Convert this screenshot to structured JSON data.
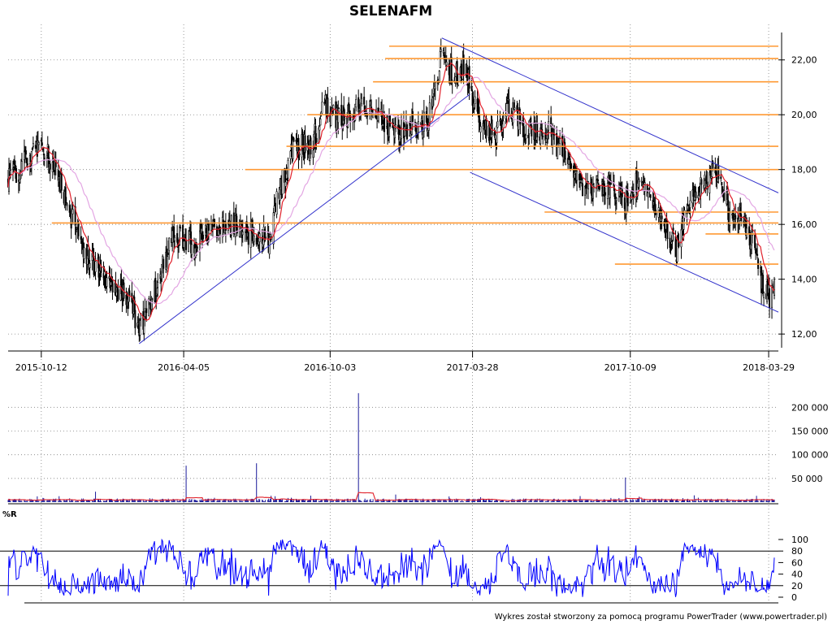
{
  "footer": "Wykres został stworzony za pomocą programu PowerTrader (www.powertrader.pl)",
  "colors": {
    "candle": "#000000",
    "ma_fast": "#e0202a",
    "ma_slow": "#e3a6e3",
    "trend": "#3333cc",
    "level": "#ff9933",
    "volume": "#1a1a99",
    "volume_ma": "#e0202a",
    "williams": "#0000ff",
    "grid": "#808080"
  },
  "chart_data": [
    {
      "type": "candlestick",
      "title": "SELENAFM",
      "x_tick_labels": [
        "2015-10-12",
        "2016-04-05",
        "2016-10-03",
        "2017-03-28",
        "2017-10-09",
        "2018-03-29"
      ],
      "x_range": [
        "2015-09-01",
        "2018-04-10"
      ],
      "y_ticks": [
        "12,00",
        "14,00",
        "16,00",
        "18,00",
        "20,00",
        "22,00"
      ],
      "ylim": [
        11.5,
        23.0
      ],
      "grid": true,
      "price_path": [
        [
          "2015-09-01",
          17.6
        ],
        [
          "2015-09-20",
          18.2
        ],
        [
          "2015-10-05",
          18.9
        ],
        [
          "2015-10-25",
          18.4
        ],
        [
          "2015-11-15",
          16.5
        ],
        [
          "2015-12-10",
          14.7
        ],
        [
          "2016-01-05",
          14.0
        ],
        [
          "2016-01-25",
          13.4
        ],
        [
          "2016-02-10",
          12.3
        ],
        [
          "2016-02-25",
          13.1
        ],
        [
          "2016-03-10",
          14.5
        ],
        [
          "2016-03-25",
          15.6
        ],
        [
          "2016-04-15",
          15.3
        ],
        [
          "2016-05-05",
          15.8
        ],
        [
          "2016-06-01",
          16.0
        ],
        [
          "2016-07-01",
          15.6
        ],
        [
          "2016-07-20",
          15.4
        ],
        [
          "2016-08-01",
          17.2
        ],
        [
          "2016-08-20",
          18.9
        ],
        [
          "2016-09-10",
          18.8
        ],
        [
          "2016-09-25",
          20.4
        ],
        [
          "2016-10-15",
          19.8
        ],
        [
          "2016-11-05",
          20.2
        ],
        [
          "2016-11-25",
          20.1
        ],
        [
          "2016-12-20",
          19.4
        ],
        [
          "2017-01-15",
          19.6
        ],
        [
          "2017-02-01",
          19.7
        ],
        [
          "2017-02-10",
          21.2
        ],
        [
          "2017-02-20",
          22.3
        ],
        [
          "2017-03-05",
          21.4
        ],
        [
          "2017-03-20",
          21.7
        ],
        [
          "2017-04-05",
          19.8
        ],
        [
          "2017-04-25",
          19.2
        ],
        [
          "2017-05-10",
          20.4
        ],
        [
          "2017-06-01",
          19.5
        ],
        [
          "2017-07-01",
          19.3
        ],
        [
          "2017-07-25",
          18.3
        ],
        [
          "2017-08-15",
          17.3
        ],
        [
          "2017-09-10",
          17.5
        ],
        [
          "2017-09-30",
          16.8
        ],
        [
          "2017-10-20",
          17.6
        ],
        [
          "2017-11-15",
          16.2
        ],
        [
          "2017-12-05",
          15.0
        ],
        [
          "2017-12-20",
          16.8
        ],
        [
          "2018-01-10",
          17.7
        ],
        [
          "2018-01-25",
          17.9
        ],
        [
          "2018-02-10",
          16.2
        ],
        [
          "2018-02-25",
          16.3
        ],
        [
          "2018-03-10",
          15.2
        ],
        [
          "2018-03-20",
          13.9
        ],
        [
          "2018-03-30",
          13.4
        ],
        [
          "2018-04-05",
          13.6
        ]
      ],
      "horizontal_levels": [
        {
          "y": 22.5,
          "from": "2016-12-15",
          "to": "2018-04-10"
        },
        {
          "y": 22.05,
          "from": "2016-12-10",
          "to": "2018-04-10"
        },
        {
          "y": 21.2,
          "from": "2016-11-25",
          "to": "2018-04-10"
        },
        {
          "y": 20.0,
          "from": "2016-09-05",
          "to": "2018-04-10"
        },
        {
          "y": 18.85,
          "from": "2016-08-10",
          "to": "2018-04-10"
        },
        {
          "y": 18.0,
          "from": "2016-06-20",
          "to": "2018-04-10"
        },
        {
          "y": 16.05,
          "from": "2015-10-25",
          "to": "2018-04-10"
        },
        {
          "y": 16.45,
          "from": "2017-06-25",
          "to": "2018-04-10"
        },
        {
          "y": 15.65,
          "from": "2018-01-10",
          "to": "2018-04-10"
        },
        {
          "y": 14.55,
          "from": "2017-09-20",
          "to": "2018-04-10"
        }
      ],
      "trendlines": [
        {
          "from": [
            "2016-02-10",
            11.65
          ],
          "to": [
            "2017-03-25",
            20.75
          ]
        },
        {
          "from": [
            "2017-02-18",
            22.8
          ],
          "to": [
            "2018-04-10",
            17.15
          ]
        },
        {
          "from": [
            "2017-03-25",
            17.9
          ],
          "to": [
            "2018-04-10",
            12.8
          ]
        }
      ]
    },
    {
      "type": "bar",
      "y_ticks": [
        "50 000",
        "100 000",
        "150 000",
        "200 000"
      ],
      "ylim": [
        0,
        240000
      ],
      "grid": true,
      "spikes": [
        [
          "2016-04-10",
          77000
        ],
        [
          "2016-07-05",
          82000
        ],
        [
          "2016-11-07",
          230000
        ],
        [
          "2017-10-05",
          52000
        ],
        [
          "2015-12-20",
          22000
        ],
        [
          "2016-12-25",
          16000
        ]
      ]
    },
    {
      "type": "line",
      "title": "%R",
      "y_ticks": [
        "0",
        "20",
        "40",
        "60",
        "80",
        "100"
      ],
      "ylim": [
        0,
        100
      ],
      "reference_lines": [
        20,
        80
      ]
    }
  ]
}
